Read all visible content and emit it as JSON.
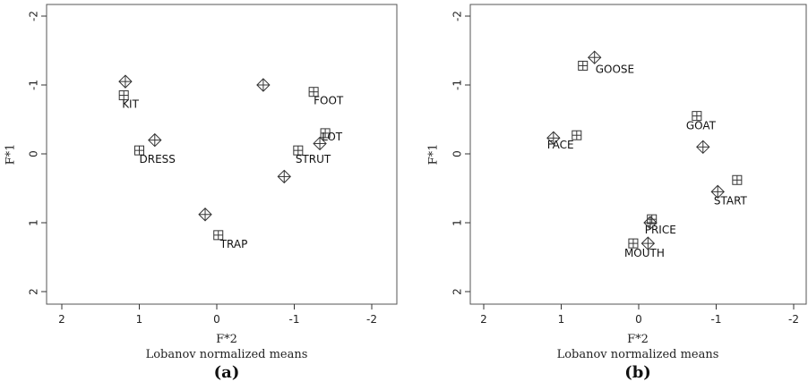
{
  "chart_data": [
    {
      "type": "scatter",
      "panel_label": "(a)",
      "xlabel": "F*2",
      "ylabel": "F*1",
      "subtitle": "Lobanov normalized means",
      "xlim": [
        2,
        -2
      ],
      "ylim": [
        -2,
        2
      ],
      "xticks": [
        "2",
        "1",
        "0",
        "-1",
        "-2"
      ],
      "yticks": [
        "-2",
        "-1",
        "0",
        "1",
        "2"
      ],
      "grid": false,
      "series": [
        {
          "marker": "square",
          "points": [
            {
              "label": "KIT",
              "x": 1.2,
              "y": -0.85
            },
            {
              "label": "DRESS",
              "x": 1.0,
              "y": -0.05
            },
            {
              "label": "FOOT",
              "x": -1.25,
              "y": -0.9
            },
            {
              "label": "LOT",
              "x": -1.4,
              "y": -0.3
            },
            {
              "label": "STRUT",
              "x": -1.05,
              "y": -0.05
            },
            {
              "label": "TRAP",
              "x": -0.02,
              "y": 1.18
            }
          ]
        },
        {
          "marker": "diamond",
          "points": [
            {
              "x": 1.18,
              "y": -1.05
            },
            {
              "x": 0.8,
              "y": -0.2
            },
            {
              "x": -0.6,
              "y": -1.0
            },
            {
              "x": -1.33,
              "y": -0.15
            },
            {
              "x": -0.87,
              "y": 0.33
            },
            {
              "x": 0.15,
              "y": 0.88
            }
          ]
        }
      ]
    },
    {
      "type": "scatter",
      "panel_label": "(b)",
      "xlabel": "F*2",
      "ylabel": "F*1",
      "subtitle": "Lobanov normalized means",
      "xlim": [
        2,
        -2
      ],
      "ylim": [
        -2,
        2
      ],
      "xticks": [
        "2",
        "1",
        "0",
        "-1",
        "-2"
      ],
      "yticks": [
        "-2",
        "-1",
        "0",
        "1",
        "2"
      ],
      "grid": false,
      "series": [
        {
          "marker": "square",
          "points": [
            {
              "label": "GOOSE",
              "x": 0.72,
              "y": -1.28
            },
            {
              "label": "FACE",
              "x": 0.8,
              "y": -0.27
            },
            {
              "label": "GOAT",
              "x": -0.75,
              "y": -0.55
            },
            {
              "label": "START",
              "x": -1.27,
              "y": 0.38
            },
            {
              "label": "PRICE",
              "x": -0.17,
              "y": 0.95
            },
            {
              "label": "MOUTH",
              "x": 0.07,
              "y": 1.3
            }
          ]
        },
        {
          "marker": "diamond",
          "points": [
            {
              "x": 0.57,
              "y": -1.4
            },
            {
              "x": 1.1,
              "y": -0.23
            },
            {
              "x": -0.83,
              "y": -0.1
            },
            {
              "x": -1.02,
              "y": 0.55
            },
            {
              "x": -0.15,
              "y": 1.0
            },
            {
              "x": -0.12,
              "y": 1.3
            }
          ]
        }
      ]
    }
  ]
}
